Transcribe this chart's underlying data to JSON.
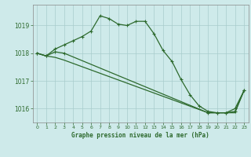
{
  "background_color": "#ceeaea",
  "grid_color": "#a8cccc",
  "line_color": "#2d6a2d",
  "title": "Graphe pression niveau de la mer (hPa)",
  "xlim": [
    -0.5,
    23.5
  ],
  "ylim": [
    1015.5,
    1019.75
  ],
  "yticks": [
    1016,
    1017,
    1018,
    1019
  ],
  "xticks": [
    0,
    1,
    2,
    3,
    4,
    5,
    6,
    7,
    8,
    9,
    10,
    11,
    12,
    13,
    14,
    15,
    16,
    17,
    18,
    19,
    20,
    21,
    22,
    23
  ],
  "series1_x": [
    0,
    1,
    2,
    3,
    4,
    5,
    6,
    7,
    8,
    9,
    10,
    11,
    12,
    13,
    14,
    15,
    16,
    17,
    18,
    19,
    20,
    21,
    22,
    23
  ],
  "series1_y": [
    1018.0,
    1017.9,
    1018.15,
    1018.3,
    1018.45,
    1018.6,
    1018.8,
    1019.35,
    1019.25,
    1019.05,
    1019.0,
    1019.15,
    1019.15,
    1018.7,
    1018.1,
    1017.7,
    1017.05,
    1016.5,
    1016.1,
    1015.9,
    1015.85,
    1015.85,
    1016.0,
    1016.65
  ],
  "series2_x": [
    0,
    1,
    2,
    3,
    19,
    20,
    21,
    22,
    23
  ],
  "series2_y": [
    1018.0,
    1017.9,
    1018.05,
    1018.0,
    1015.85,
    1015.85,
    1015.85,
    1015.9,
    1016.65
  ],
  "series3_x": [
    0,
    1,
    2,
    3,
    19,
    20,
    21,
    22,
    23
  ],
  "series3_y": [
    1018.0,
    1017.9,
    1017.85,
    1017.75,
    1015.85,
    1015.85,
    1015.85,
    1015.85,
    1016.65
  ]
}
